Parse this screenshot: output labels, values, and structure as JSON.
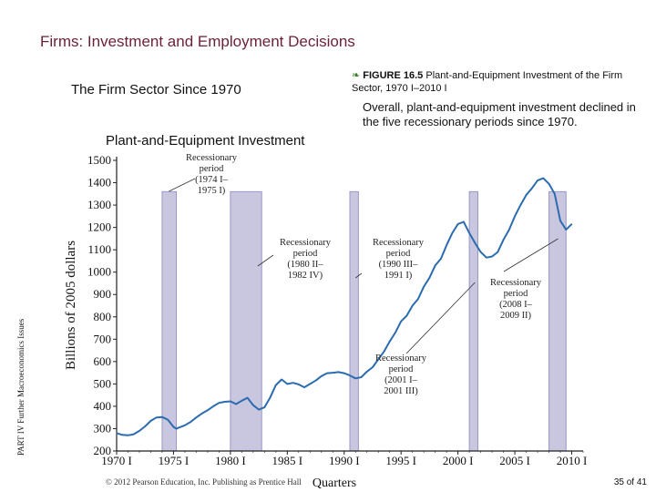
{
  "slide": {
    "title": "Firms: Investment and Employment Decisions",
    "section_title": "The Firm Sector Since 1970",
    "figure_bullet": "❧",
    "figure_label": "FIGURE 16.5",
    "figure_title": "Plant-and-Equipment Investment of the Firm Sector, 1970 I–2010 I",
    "description": "Overall, plant-and-equipment investment declined in the five recessionary periods since 1970.",
    "chart_title": "Plant-and-Equipment Investment",
    "side_label": "PART IV  Further Macroeconomics Issues",
    "copyright": "© 2012 Pearson Education, Inc. Publishing as Prentice Hall",
    "page_number": "35 of 41"
  },
  "colors": {
    "title": "#6b1f3a",
    "line": "#2b6cb0",
    "recession_fill": "#c9c6df",
    "recession_edge": "#9b97c6",
    "axis": "#222222"
  },
  "chart_data": {
    "type": "line",
    "title": "Plant-and-Equipment Investment",
    "xlabel": "Quarters",
    "ylabel": "Billions of 2005 dollars",
    "xlim": [
      1970,
      2011
    ],
    "ylim": [
      200,
      1500
    ],
    "yticks": [
      200,
      300,
      400,
      500,
      600,
      700,
      800,
      900,
      1000,
      1100,
      1200,
      1300,
      1400,
      1500
    ],
    "xticks": [
      {
        "label": "1970 I",
        "year": 1970
      },
      {
        "label": "1975 I",
        "year": 1975
      },
      {
        "label": "1980 I",
        "year": 1980
      },
      {
        "label": "1985 I",
        "year": 1985
      },
      {
        "label": "1990 I",
        "year": 1990
      },
      {
        "label": "1995 I",
        "year": 1995
      },
      {
        "label": "2000 I",
        "year": 2000
      },
      {
        "label": "2005 I",
        "year": 2005
      },
      {
        "label": "2010 I",
        "year": 2010
      }
    ],
    "recessions": [
      {
        "start": 1974.0,
        "end": 1975.25,
        "label": [
          "Recessionary",
          "period",
          "(1974 I–",
          "1975 I)"
        ]
      },
      {
        "start": 1980.0,
        "end": 1982.75,
        "label": [
          "Recessionary",
          "period",
          "(1980 II–",
          "1982 IV)"
        ]
      },
      {
        "start": 1990.5,
        "end": 1991.25,
        "label": [
          "Recessionary",
          "period",
          "(1990 III–",
          "1991 I)"
        ]
      },
      {
        "start": 2001.0,
        "end": 2001.75,
        "label": [
          "Recessionary",
          "period",
          "(2001 I–",
          "2001 III)"
        ]
      },
      {
        "start": 2008.0,
        "end": 2009.5,
        "label": [
          "Recessionary",
          "period",
          "(2008 I–",
          "2009 II)"
        ]
      }
    ],
    "series": [
      {
        "name": "Plant-and-equipment investment",
        "x": [
          1970,
          1970.5,
          1971,
          1971.5,
          1972,
          1972.5,
          1973,
          1973.5,
          1974,
          1974.5,
          1975,
          1975.25,
          1975.5,
          1976,
          1976.5,
          1977,
          1977.5,
          1978,
          1978.5,
          1979,
          1979.5,
          1980,
          1980.5,
          1981,
          1981.5,
          1982,
          1982.5,
          1983,
          1983.5,
          1984,
          1984.5,
          1985,
          1985.5,
          1986,
          1986.5,
          1987,
          1987.5,
          1988,
          1988.5,
          1989,
          1989.5,
          1990,
          1990.5,
          1991,
          1991.5,
          1992,
          1992.5,
          1993,
          1993.5,
          1994,
          1994.5,
          1995,
          1995.5,
          1996,
          1996.5,
          1997,
          1997.5,
          1998,
          1998.5,
          1999,
          1999.5,
          2000,
          2000.5,
          2001,
          2001.5,
          2002,
          2002.5,
          2003,
          2003.5,
          2004,
          2004.5,
          2005,
          2005.5,
          2006,
          2006.5,
          2007,
          2007.5,
          2008,
          2008.5,
          2009,
          2009.5,
          2010
        ],
        "values": [
          280,
          272,
          270,
          275,
          290,
          310,
          335,
          350,
          352,
          340,
          308,
          300,
          305,
          315,
          330,
          350,
          368,
          382,
          400,
          415,
          420,
          422,
          410,
          425,
          438,
          405,
          385,
          395,
          440,
          495,
          520,
          500,
          505,
          498,
          485,
          500,
          515,
          535,
          548,
          550,
          553,
          548,
          538,
          525,
          530,
          555,
          575,
          610,
          645,
          690,
          730,
          780,
          805,
          850,
          880,
          935,
          975,
          1030,
          1060,
          1120,
          1175,
          1215,
          1225,
          1175,
          1130,
          1090,
          1065,
          1070,
          1090,
          1145,
          1190,
          1250,
          1300,
          1345,
          1375,
          1410,
          1420,
          1395,
          1350,
          1230,
          1190,
          1215
        ]
      }
    ]
  }
}
